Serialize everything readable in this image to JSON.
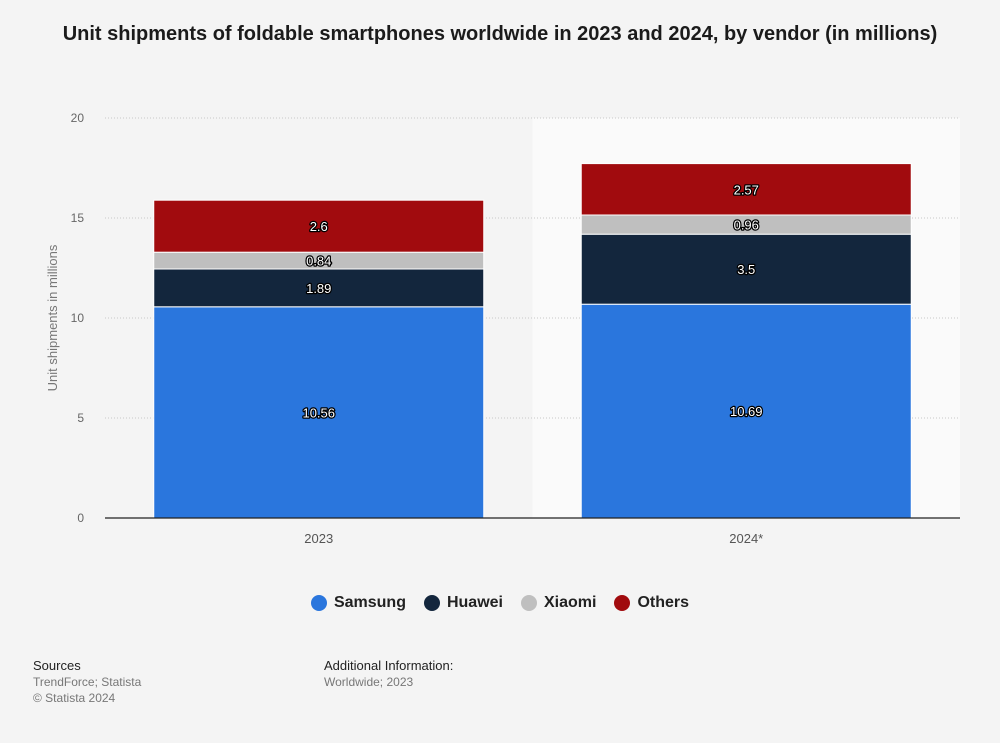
{
  "chart_data": {
    "type": "bar",
    "stacked": true,
    "title": "Unit shipments of foldable smartphones worldwide in 2023 and 2024, by vendor (in millions)",
    "xlabel": "",
    "ylabel": "Unit shipments in millions",
    "ylim": [
      0,
      20
    ],
    "yticks": [
      0,
      5,
      10,
      15,
      20
    ],
    "categories": [
      "2023",
      "2024*"
    ],
    "series": [
      {
        "name": "Samsung",
        "color": "#2a76dd",
        "values": [
          10.56,
          10.69
        ],
        "labels": [
          "10.56",
          "10.69"
        ]
      },
      {
        "name": "Huawei",
        "color": "#13263d",
        "values": [
          1.89,
          3.5
        ],
        "labels": [
          "1.89",
          "3.5"
        ]
      },
      {
        "name": "Xiaomi",
        "color": "#bfbfbf",
        "values": [
          0.84,
          0.96
        ],
        "labels": [
          "0.84",
          "0.96"
        ]
      },
      {
        "name": "Others",
        "color": "#a10b0e",
        "values": [
          2.6,
          2.57
        ],
        "labels": [
          "2.6",
          "2.57"
        ]
      }
    ],
    "legend_position": "bottom-center"
  },
  "footer": {
    "sources_heading": "Sources",
    "sources_text": "TrendForce; Statista",
    "copyright": "© Statista 2024",
    "additional_heading": "Additional Information:",
    "additional_text": "Worldwide; 2023"
  }
}
